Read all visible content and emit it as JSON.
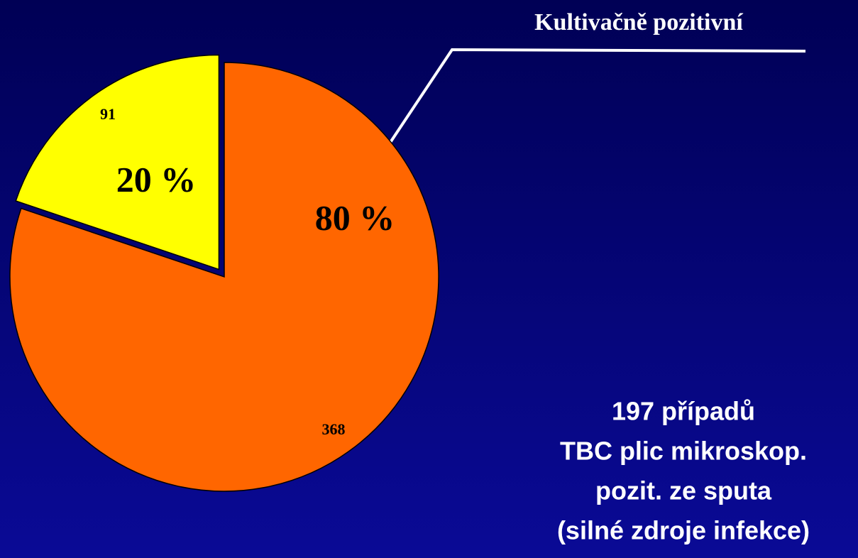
{
  "chart_data": {
    "type": "pie",
    "values": [
      368,
      91
    ],
    "colors": [
      "#ff6600",
      "#ffff00"
    ],
    "explode": [
      false,
      true
    ],
    "percentages": [
      80,
      20
    ],
    "percentage_labels": [
      "80 %",
      "20 %"
    ],
    "annotation": "Kultivačně pozitivní",
    "note_lines": [
      "197 případů",
      "TBC plic mikroskop.",
      "pozit. ze sputa",
      "(silné zdroje infekce)"
    ]
  }
}
